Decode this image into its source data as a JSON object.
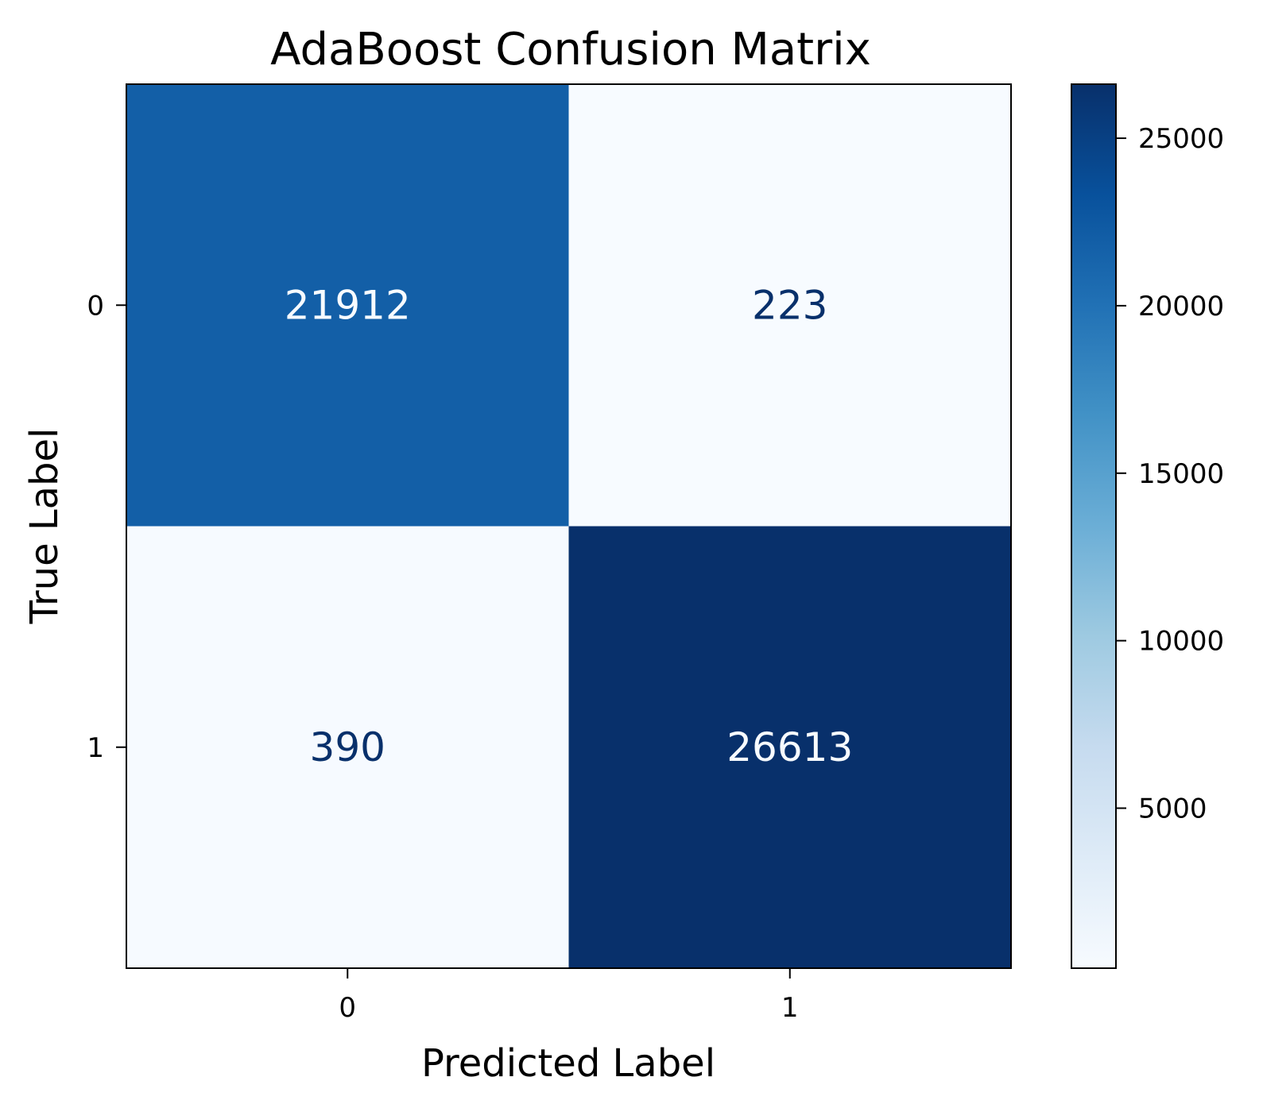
{
  "chart_data": {
    "type": "heatmap",
    "title": "AdaBoost Confusion Matrix",
    "xlabel": "Predicted Label",
    "ylabel": "True Label",
    "x_categories": [
      "0",
      "1"
    ],
    "y_categories": [
      "0",
      "1"
    ],
    "matrix": [
      [
        21912,
        223
      ],
      [
        390,
        26613
      ]
    ],
    "colormap": "Blues",
    "colorbar": {
      "range": [
        223,
        26613
      ],
      "ticks": [
        "5000",
        "10000",
        "15000",
        "20000",
        "25000"
      ]
    },
    "colors": {
      "light": "#f7fbff",
      "dark": "#08306b",
      "mid_blue": "#125ca5",
      "text_light": "#f7fbff",
      "text_dark": "#08306b"
    }
  }
}
